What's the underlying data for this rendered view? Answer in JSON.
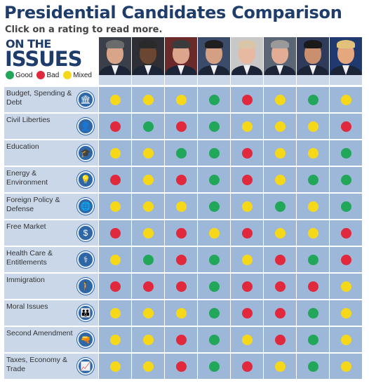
{
  "header": {
    "title": "Presidential Candidates Comparison",
    "subtitle": "Click on a rating to read more."
  },
  "logo": {
    "line1": "ON THE",
    "line2": "ISSUES"
  },
  "legend": [
    {
      "label": "Good",
      "color": "#22a65a"
    },
    {
      "label": "Bad",
      "color": "#e0293d"
    },
    {
      "label": "Mixed",
      "color": "#f6d81b"
    }
  ],
  "rating_colors": {
    "good": "#22a65a",
    "bad": "#e0293d",
    "mixed": "#f6d81b"
  },
  "candidates": [
    {
      "photo": "candidate-1-photo",
      "skin": "#d9a58a",
      "hair": "#6b6b6b",
      "bg": "#3a3f4a"
    },
    {
      "photo": "candidate-2-photo",
      "skin": "#6b4632",
      "hair": "#2a2a2a",
      "bg": "#2e2e35"
    },
    {
      "photo": "candidate-3-photo",
      "skin": "#dca58c",
      "hair": "#3b3b3b",
      "bg": "#6a2a2a"
    },
    {
      "photo": "candidate-4-photo",
      "skin": "#d4a083",
      "hair": "#1f1f1f",
      "bg": "#3b4b6a"
    },
    {
      "photo": "candidate-5-photo",
      "skin": "#e6b9a0",
      "hair": "#d9c6a8",
      "bg": "#c8c8c8"
    },
    {
      "photo": "candidate-6-photo",
      "skin": "#e2ad94",
      "hair": "#9a9a9a",
      "bg": "#5a6575"
    },
    {
      "photo": "candidate-7-photo",
      "skin": "#c98f6e",
      "hair": "#1a1a1a",
      "bg": "#2f3b5a"
    },
    {
      "photo": "candidate-8-photo",
      "skin": "#e5a77d",
      "hair": "#e2c27a",
      "bg": "#203a70"
    }
  ],
  "issues": [
    {
      "label": "Budget, Spending & Debt",
      "icon": "bank-icon",
      "glyph": "🏛",
      "ratings": [
        "mixed",
        "mixed",
        "mixed",
        "good",
        "bad",
        "mixed",
        "good",
        "mixed"
      ]
    },
    {
      "label": "Civil Liberties",
      "icon": "person-icon",
      "glyph": "👤",
      "ratings": [
        "bad",
        "good",
        "bad",
        "good",
        "mixed",
        "mixed",
        "mixed",
        "bad"
      ]
    },
    {
      "label": "Education",
      "icon": "graduation-cap-icon",
      "glyph": "🎓",
      "ratings": [
        "mixed",
        "mixed",
        "good",
        "good",
        "bad",
        "mixed",
        "mixed",
        "good"
      ]
    },
    {
      "label": "Energy & Environment",
      "icon": "lightbulb-icon",
      "glyph": "💡",
      "ratings": [
        "bad",
        "mixed",
        "bad",
        "good",
        "bad",
        "mixed",
        "good",
        "good"
      ]
    },
    {
      "label": "Foreign Policy & Defense",
      "icon": "globe-icon",
      "glyph": "🌐",
      "ratings": [
        "mixed",
        "mixed",
        "mixed",
        "good",
        "mixed",
        "good",
        "mixed",
        "good"
      ]
    },
    {
      "label": "Free Market",
      "icon": "money-icon",
      "glyph": "$",
      "ratings": [
        "bad",
        "mixed",
        "bad",
        "mixed",
        "bad",
        "mixed",
        "mixed",
        "bad"
      ]
    },
    {
      "label": "Health Care & Entitlements",
      "icon": "caduceus-icon",
      "glyph": "⚕",
      "ratings": [
        "mixed",
        "good",
        "bad",
        "good",
        "mixed",
        "bad",
        "good",
        "bad"
      ]
    },
    {
      "label": "Immigration",
      "icon": "immigrant-icon",
      "glyph": "🚶",
      "ratings": [
        "bad",
        "bad",
        "bad",
        "good",
        "bad",
        "bad",
        "bad",
        "mixed"
      ]
    },
    {
      "label": "Moral Issues",
      "icon": "family-icon",
      "glyph": "👪",
      "ratings": [
        "mixed",
        "mixed",
        "mixed",
        "good",
        "bad",
        "bad",
        "good",
        "mixed"
      ]
    },
    {
      "label": "Second Amendment",
      "icon": "gun-icon",
      "glyph": "🔫",
      "ratings": [
        "mixed",
        "mixed",
        "bad",
        "good",
        "mixed",
        "bad",
        "good",
        "mixed"
      ]
    },
    {
      "label": "Taxes, Economy & Trade",
      "icon": "chart-icon",
      "glyph": "📈",
      "ratings": [
        "mixed",
        "mixed",
        "bad",
        "good",
        "bad",
        "mixed",
        "good",
        "mixed"
      ]
    }
  ]
}
